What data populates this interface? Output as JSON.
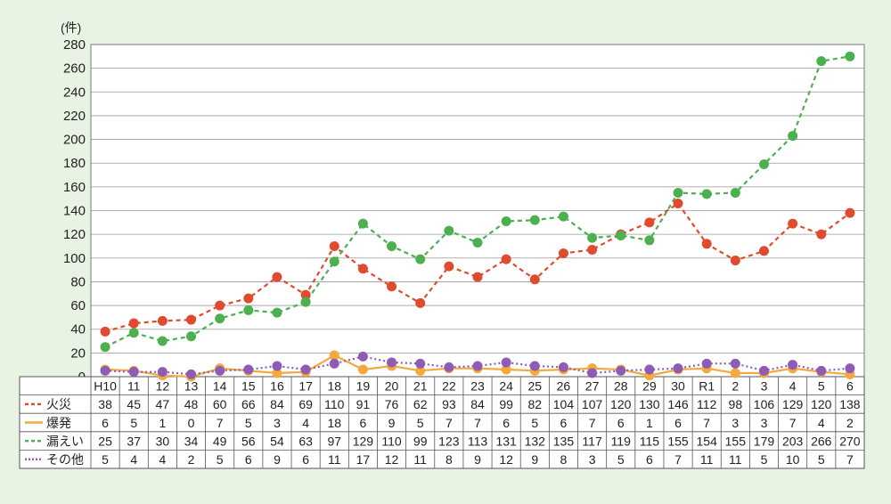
{
  "chart_data": {
    "type": "line",
    "unit_label": "(件)",
    "ylim": [
      0,
      280
    ],
    "yticks": [
      0,
      20,
      40,
      60,
      80,
      100,
      120,
      140,
      160,
      180,
      200,
      220,
      240,
      260,
      280
    ],
    "grid": true,
    "legend_placement": "table-left",
    "categories": [
      "H10",
      "11",
      "12",
      "13",
      "14",
      "15",
      "16",
      "17",
      "18",
      "19",
      "20",
      "21",
      "22",
      "23",
      "24",
      "25",
      "26",
      "27",
      "28",
      "29",
      "30",
      "R1",
      "2",
      "3",
      "4",
      "5",
      "6"
    ],
    "series": [
      {
        "name": "火災",
        "style": "dashed",
        "color": "#e04a2f",
        "values": [
          38,
          45,
          47,
          48,
          60,
          66,
          84,
          69,
          110,
          91,
          76,
          62,
          93,
          84,
          99,
          82,
          104,
          107,
          120,
          130,
          146,
          112,
          98,
          106,
          129,
          120,
          138
        ]
      },
      {
        "name": "爆発",
        "style": "solid",
        "color": "#f5a83c",
        "values": [
          6,
          5,
          1,
          0,
          7,
          5,
          3,
          4,
          18,
          6,
          9,
          5,
          7,
          7,
          6,
          5,
          6,
          7,
          6,
          1,
          6,
          7,
          3,
          3,
          7,
          4,
          2
        ]
      },
      {
        "name": "漏えい",
        "style": "dashed",
        "color": "#4caf50",
        "values": [
          25,
          37,
          30,
          34,
          49,
          56,
          54,
          63,
          97,
          129,
          110,
          99,
          123,
          113,
          131,
          132,
          135,
          117,
          119,
          115,
          155,
          154,
          155,
          179,
          203,
          266,
          270
        ]
      },
      {
        "name": "その他",
        "style": "dotted",
        "color": "#8e5bb5",
        "values": [
          5,
          4,
          4,
          2,
          5,
          6,
          9,
          6,
          11,
          17,
          12,
          11,
          8,
          9,
          12,
          9,
          8,
          3,
          5,
          6,
          7,
          11,
          11,
          5,
          10,
          5,
          7
        ]
      }
    ]
  }
}
